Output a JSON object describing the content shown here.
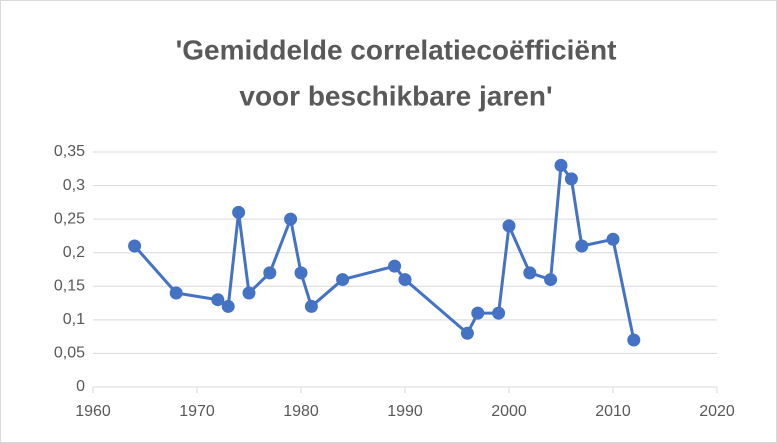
{
  "chart_data": {
    "type": "line",
    "title": [
      "'Gemiddelde correlatiecoëfficiënt",
      "voor beschikbare jaren'"
    ],
    "x": [
      1964,
      1968,
      1972,
      1973,
      1974,
      1975,
      1977,
      1979,
      1980,
      1981,
      1984,
      1989,
      1990,
      1996,
      1997,
      1999,
      2000,
      2002,
      2004,
      2005,
      2006,
      2007,
      2010,
      2012
    ],
    "series": [
      {
        "color": "#4472c4",
        "values": [
          0.21,
          0.14,
          0.13,
          0.12,
          0.26,
          0.14,
          0.17,
          0.25,
          0.17,
          0.12,
          0.16,
          0.18,
          0.16,
          0.08,
          0.11,
          0.11,
          0.24,
          0.17,
          0.16,
          0.33,
          0.31,
          0.21,
          0.22,
          0.07
        ]
      }
    ],
    "xlim": [
      1960,
      2020
    ],
    "xticks": [
      1960,
      1970,
      1980,
      1990,
      2000,
      2010,
      2020
    ],
    "ylim": [
      0,
      0.35
    ],
    "yticks": [
      0,
      {
        "value": 0.05,
        "label": "0,05"
      },
      {
        "value": 0.1,
        "label": "0,1"
      },
      {
        "value": 0.15,
        "label": "0,15"
      },
      {
        "value": 0.2,
        "label": "0,2"
      },
      {
        "value": 0.25,
        "label": "0,25"
      },
      {
        "value": 0.3,
        "label": "0,3"
      },
      {
        "value": 0.35,
        "label": "0,35"
      }
    ],
    "grid": true
  }
}
